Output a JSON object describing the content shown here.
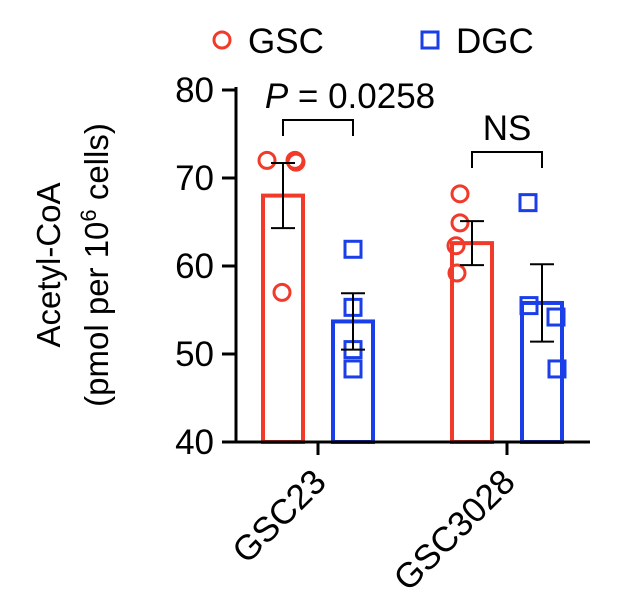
{
  "chart_data": {
    "type": "bar",
    "categories": [
      "GSC23",
      "GSC3028"
    ],
    "ylabel_line1": "Acetyl-CoA",
    "ylabel_line2_pre": "(pmol per 10",
    "ylabel_line2_sup": "6",
    "ylabel_line2_post": " cells)",
    "ylim": [
      40,
      80
    ],
    "yticks": [
      40,
      50,
      60,
      70,
      80
    ],
    "ytick_labels": [
      "40",
      "50",
      "60",
      "70",
      "80"
    ],
    "series": [
      {
        "name": "GSC",
        "color": "#f23a2a",
        "marker": "circle",
        "values": [
          68.0,
          62.6
        ],
        "error": [
          3.7,
          2.5
        ],
        "points": [
          [
            72,
            72,
            71.8,
            57
          ],
          [
            68.2,
            64.9,
            62.3,
            59.2
          ]
        ]
      },
      {
        "name": "DGC",
        "color": "#1a3fe8",
        "marker": "square",
        "values": [
          53.7,
          55.8
        ],
        "error": [
          3.2,
          4.4
        ],
        "points": [
          [
            61.9,
            55.3,
            50.5,
            48.3
          ],
          [
            67.2,
            55.5,
            54.2,
            48.3
          ]
        ]
      }
    ],
    "annotations": [
      {
        "category": "GSC23",
        "p_label": "P",
        "text": " = 0.0258"
      },
      {
        "category": "GSC3028",
        "text": "NS"
      }
    ],
    "legend_position": "top"
  }
}
